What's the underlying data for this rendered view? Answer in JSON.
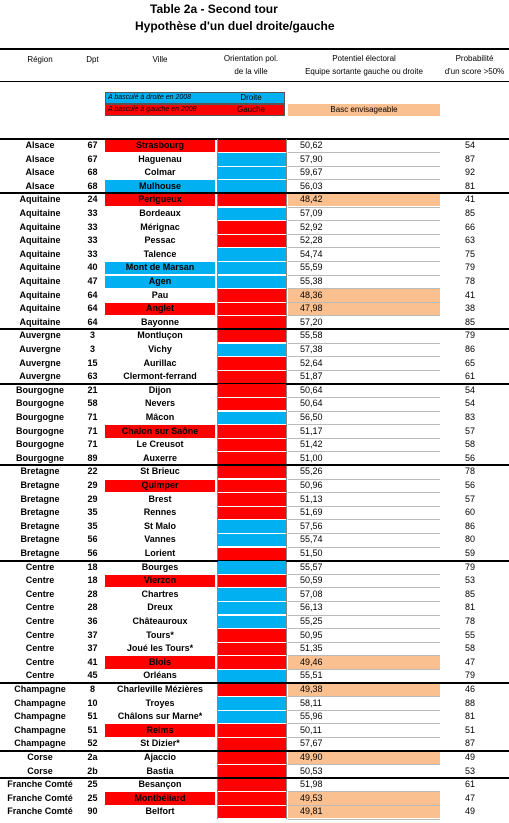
{
  "header": {
    "title": "Table 2a - Second tour",
    "subtitle": "Hypothèse d'un duel droite/gauche"
  },
  "palette": {
    "red": "#ff0000",
    "blue": "#00b0f0",
    "orange": "#fac090"
  },
  "columns": [
    [
      "Région"
    ],
    [
      "Dpt"
    ],
    [
      "Ville"
    ],
    [
      "Orientation pol.",
      "de la ville"
    ],
    [
      "Potentiel électoral",
      "Equipe sortante gauche ou droite"
    ],
    [
      "Probabilité",
      "d'un score  >50%"
    ]
  ],
  "legend": [
    {
      "text": "A basculé à droite en 2008",
      "label": "Droite",
      "color": "blue"
    },
    {
      "text": "A basculé à gauche en 2008",
      "label": "Gauche",
      "color": "red"
    },
    {
      "text": "Basc envisageable",
      "color": "orange"
    }
  ],
  "rows": [
    [
      "Alsace",
      "67",
      "Strasbourg",
      "red",
      "red",
      "50,62",
      false,
      "54"
    ],
    [
      "Alsace",
      "67",
      "Haguenau",
      null,
      "blue",
      "57,90",
      false,
      "87"
    ],
    [
      "Alsace",
      "68",
      "Colmar",
      null,
      "blue",
      "59,67",
      false,
      "92"
    ],
    [
      "Alsace",
      "68",
      "Mulhouse",
      "blue",
      "blue",
      "56,03",
      false,
      "81"
    ],
    [
      "Aquitaine",
      "24",
      "Perigueux",
      "red",
      "red",
      "48,42",
      true,
      "41"
    ],
    [
      "Aquitaine",
      "33",
      "Bordeaux",
      null,
      "blue",
      "57,09",
      false,
      "85"
    ],
    [
      "Aquitaine",
      "33",
      "Mérignac",
      null,
      "red",
      "52,92",
      false,
      "66"
    ],
    [
      "Aquitaine",
      "33",
      "Pessac",
      null,
      "red",
      "52,28",
      false,
      "63"
    ],
    [
      "Aquitaine",
      "33",
      "Talence",
      null,
      "blue",
      "54,74",
      false,
      "75"
    ],
    [
      "Aquitaine",
      "40",
      "Mont de Marsan",
      "blue",
      "blue",
      "55,59",
      false,
      "79"
    ],
    [
      "Aquitaine",
      "47",
      "Agen",
      "blue",
      "blue",
      "55,38",
      false,
      "78"
    ],
    [
      "Aquitaine",
      "64",
      "Pau",
      null,
      "red",
      "48,36",
      true,
      "41"
    ],
    [
      "Aquitaine",
      "64",
      "Anglet",
      "red",
      "red",
      "47,98",
      true,
      "38"
    ],
    [
      "Aquitaine",
      "64",
      "Bayonne",
      null,
      "red",
      "57,20",
      false,
      "85"
    ],
    [
      "Auvergne",
      "3",
      "Montluçon",
      null,
      "red",
      "55,58",
      false,
      "79"
    ],
    [
      "Auvergne",
      "3",
      "Vichy",
      null,
      "blue",
      "57,38",
      false,
      "86"
    ],
    [
      "Auvergne",
      "15",
      "Aurillac",
      null,
      "red",
      "52,64",
      false,
      "65"
    ],
    [
      "Auvergne",
      "63",
      "Clermont-ferrand",
      null,
      "red",
      "51,87",
      false,
      "61"
    ],
    [
      "Bourgogne",
      "21",
      "Dijon",
      null,
      "red",
      "50,64",
      false,
      "54"
    ],
    [
      "Bourgogne",
      "58",
      "Nevers",
      null,
      "red",
      "50,64",
      false,
      "54"
    ],
    [
      "Bourgogne",
      "71",
      "Mâcon",
      null,
      "blue",
      "56,50",
      false,
      "83"
    ],
    [
      "Bourgogne",
      "71",
      "Chalon sur Saône",
      "red",
      "red",
      "51,17",
      false,
      "57"
    ],
    [
      "Bourgogne",
      "71",
      "Le Creusot",
      null,
      "red",
      "51,42",
      false,
      "58"
    ],
    [
      "Bourgogne",
      "89",
      "Auxerre",
      null,
      "red",
      "51,00",
      false,
      "56"
    ],
    [
      "Bretagne",
      "22",
      "St Brieuc",
      null,
      "red",
      "55,26",
      false,
      "78"
    ],
    [
      "Bretagne",
      "29",
      "Quimper",
      "red",
      "red",
      "50,96",
      false,
      "56"
    ],
    [
      "Bretagne",
      "29",
      "Brest",
      null,
      "red",
      "51,13",
      false,
      "57"
    ],
    [
      "Bretagne",
      "35",
      "Rennes",
      null,
      "red",
      "51,69",
      false,
      "60"
    ],
    [
      "Bretagne",
      "35",
      "St Malo",
      null,
      "blue",
      "57,56",
      false,
      "86"
    ],
    [
      "Bretagne",
      "56",
      "Vannes",
      null,
      "blue",
      "55,74",
      false,
      "80"
    ],
    [
      "Bretagne",
      "56",
      "Lorient",
      null,
      "red",
      "51,50",
      false,
      "59"
    ],
    [
      "Centre",
      "18",
      "Bourges",
      null,
      "blue",
      "55,57",
      false,
      "79"
    ],
    [
      "Centre",
      "18",
      "Vierzon",
      "red",
      "red",
      "50,59",
      false,
      "53"
    ],
    [
      "Centre",
      "28",
      "Chartres",
      null,
      "blue",
      "57,08",
      false,
      "85"
    ],
    [
      "Centre",
      "28",
      "Dreux",
      null,
      "blue",
      "56,13",
      false,
      "81"
    ],
    [
      "Centre",
      "36",
      "Châteauroux",
      null,
      "blue",
      "55,25",
      false,
      "78"
    ],
    [
      "Centre",
      "37",
      "Tours*",
      null,
      "red",
      "50,95",
      false,
      "55"
    ],
    [
      "Centre",
      "37",
      "Joué les Tours*",
      null,
      "red",
      "51,35",
      false,
      "58"
    ],
    [
      "Centre",
      "41",
      "Blois",
      "red",
      "red",
      "49,46",
      true,
      "47"
    ],
    [
      "Centre",
      "45",
      "Orléans",
      null,
      "blue",
      "55,51",
      false,
      "79"
    ],
    [
      "Champagne",
      "8",
      "Charleville Mézières",
      null,
      "red",
      "49,38",
      true,
      "46"
    ],
    [
      "Champagne",
      "10",
      "Troyes",
      null,
      "blue",
      "58,11",
      false,
      "88"
    ],
    [
      "Champagne",
      "51",
      "Châlons sur Marne*",
      null,
      "blue",
      "55,96",
      false,
      "81"
    ],
    [
      "Champagne",
      "51",
      "Reims",
      "red",
      "red",
      "50,11",
      false,
      "51"
    ],
    [
      "Champagne",
      "52",
      "St Dizier*",
      null,
      "red",
      "57,67",
      false,
      "87"
    ],
    [
      "Corse",
      "2a",
      "Ajaccio",
      null,
      "red",
      "49,90",
      true,
      "49"
    ],
    [
      "Corse",
      "2b",
      "Bastia",
      null,
      "red",
      "50,53",
      false,
      "53"
    ],
    [
      "Franche Comté",
      "25",
      "Besançon",
      null,
      "red",
      "51,98",
      false,
      "61"
    ],
    [
      "Franche Comté",
      "25",
      "Montbéliard",
      "red",
      "red",
      "49,53",
      true,
      "47"
    ],
    [
      "Franche Comté",
      "90",
      "Belfort",
      null,
      "red",
      "49,81",
      true,
      "49"
    ]
  ]
}
